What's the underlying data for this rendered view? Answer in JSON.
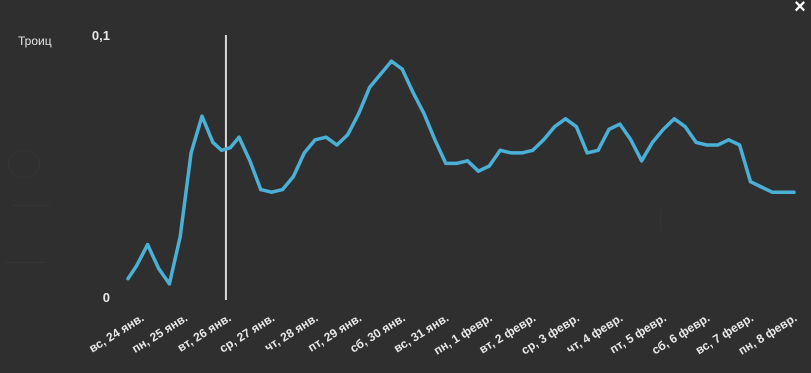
{
  "panel": {
    "side_label": "Троиц",
    "close_symbol": "×"
  },
  "colors": {
    "background": "#2f2f2f",
    "series_line": "#4ab0d6",
    "cursor_line": "#d8d8d8",
    "text": "#e8e8e8"
  },
  "chart_data": {
    "type": "line",
    "title": "",
    "xlabel": "",
    "ylabel": "",
    "ylim": [
      0,
      0.1
    ],
    "y_ticks": [
      {
        "value": 0,
        "label": "0"
      },
      {
        "value": 0.1,
        "label": "0,1"
      }
    ],
    "x_tick_labels": [
      "вс, 24 янв.",
      "пн, 25 янв.",
      "вт, 26 янв.",
      "ср, 27 янв.",
      "чт, 28 янв.",
      "пт, 29 янв.",
      "сб, 30 янв.",
      "вс, 31 янв.",
      "пн, 1 февр.",
      "вт, 2 февр.",
      "ср, 3 февр.",
      "чт, 4 февр.",
      "пт, 5 февр.",
      "сб, 6 февр.",
      "вс, 7 февр.",
      "пн, 8 февр."
    ],
    "x_label_start": 0.25,
    "x_label_step": 1,
    "cursor_x": 2.25,
    "grid": false,
    "legend": "none",
    "series": [
      {
        "x": [
          0,
          0.2,
          0.45,
          0.7,
          0.95,
          1.2,
          1.45,
          1.7,
          1.95,
          2.15,
          2.35,
          2.55,
          2.8,
          3.05,
          3.3,
          3.55,
          3.8,
          4.05,
          4.3,
          4.55,
          4.8,
          5.05,
          5.3,
          5.55,
          5.8,
          6.05,
          6.3,
          6.55,
          6.8,
          7.05,
          7.3,
          7.55,
          7.8,
          8.05,
          8.3,
          8.55,
          8.8,
          9.05,
          9.3,
          9.55,
          9.8,
          10.05,
          10.3,
          10.55,
          10.8,
          11.05,
          11.3,
          11.55,
          11.8,
          12.05,
          12.3,
          12.55,
          12.8,
          13.05,
          13.3,
          13.55,
          13.8,
          14.05,
          14.3,
          14.55,
          14.8,
          15.05,
          15.3
        ],
        "values": [
          0.007,
          0.012,
          0.02,
          0.011,
          0.005,
          0.023,
          0.055,
          0.069,
          0.059,
          0.056,
          0.057,
          0.061,
          0.052,
          0.041,
          0.04,
          0.041,
          0.046,
          0.055,
          0.06,
          0.061,
          0.058,
          0.062,
          0.07,
          0.08,
          0.085,
          0.09,
          0.087,
          0.078,
          0.07,
          0.06,
          0.051,
          0.051,
          0.052,
          0.048,
          0.05,
          0.056,
          0.055,
          0.055,
          0.056,
          0.06,
          0.065,
          0.068,
          0.065,
          0.055,
          0.056,
          0.064,
          0.066,
          0.06,
          0.052,
          0.059,
          0.064,
          0.068,
          0.065,
          0.059,
          0.058,
          0.058,
          0.06,
          0.058,
          0.044,
          0.042,
          0.04,
          0.04,
          0.04
        ]
      }
    ]
  }
}
